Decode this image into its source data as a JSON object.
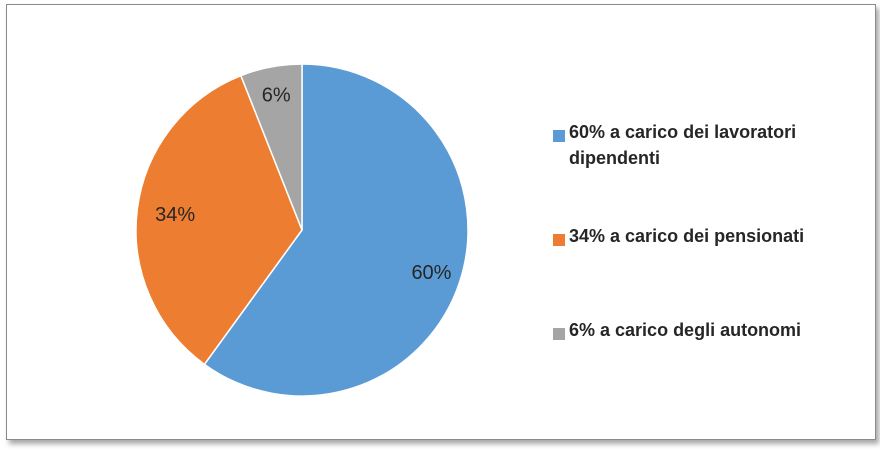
{
  "chart_data": {
    "type": "pie",
    "slices": [
      {
        "label": "60% a carico dei lavoratori dipendenti",
        "value": 60,
        "data_label": "60%",
        "color": "#5B9BD5"
      },
      {
        "label": "34% a carico dei pensionati",
        "value": 34,
        "data_label": "34%",
        "color": "#ED7D31"
      },
      {
        "label": "6% a carico degli autonomi",
        "value": 6,
        "data_label": "6%",
        "color": "#A5A5A5"
      }
    ],
    "legend_position": "right",
    "legend": {
      "item0_line1": "60% a carico dei lavoratori",
      "item0_line2": "dipendenti",
      "item1": "34% a carico dei pensionati",
      "item2": "6% a carico degli autonomi"
    }
  }
}
